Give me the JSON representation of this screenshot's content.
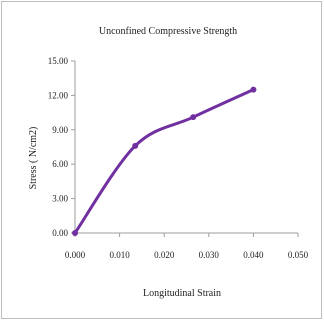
{
  "chart_data": {
    "type": "line",
    "title": "Unconfined Compressive Strength",
    "xlabel": "Longitudinal Strain",
    "ylabel": "Stress ( N/cm2)",
    "xlim": [
      0,
      0.05
    ],
    "ylim": [
      0,
      15
    ],
    "x_ticks": [
      "0.000",
      "0.010",
      "0.020",
      "0.030",
      "0.040",
      "0.050"
    ],
    "y_ticks": [
      "0.00",
      "3.00",
      "6.00",
      "9.00",
      "12.00",
      "15.00"
    ],
    "grid": false,
    "legend": "none",
    "series": [
      {
        "color": "#7030a0",
        "x": [
          0.0,
          0.0135,
          0.0265,
          0.04
        ],
        "y": [
          0.0,
          7.6,
          10.1,
          12.5
        ]
      }
    ]
  }
}
